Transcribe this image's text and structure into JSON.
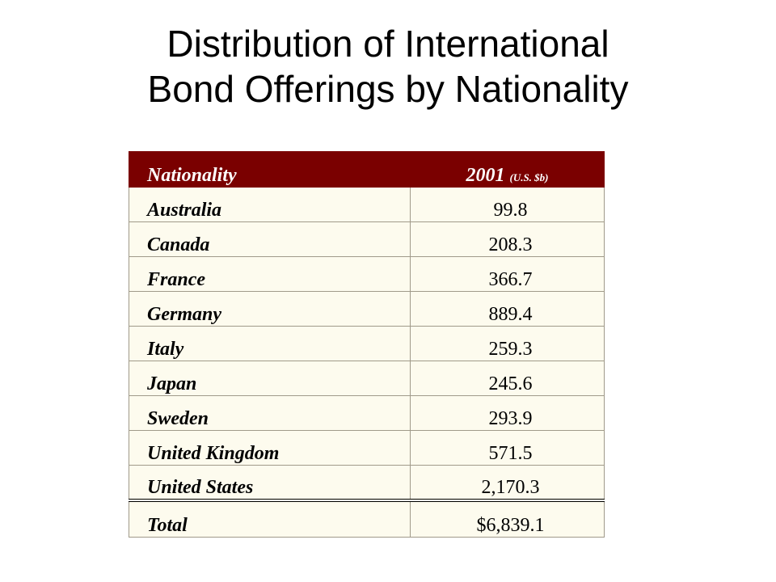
{
  "title": {
    "line1": "Distribution of International",
    "line2": "Bond Offerings by Nationality"
  },
  "table": {
    "headers": {
      "nationality": "Nationality",
      "year": "2001",
      "unit": "(U.S. $b)"
    },
    "header_bg_color": "#7a0000",
    "rows": [
      {
        "name": "Australia",
        "value": "99.8"
      },
      {
        "name": "Canada",
        "value": "208.3"
      },
      {
        "name": "France",
        "value": "366.7"
      },
      {
        "name": "Germany",
        "value": "889.4"
      },
      {
        "name": "Italy",
        "value": "259.3"
      },
      {
        "name": "Japan",
        "value": "245.6"
      },
      {
        "name": "Sweden",
        "value": "293.9"
      },
      {
        "name": "United Kingdom",
        "value": "571.5"
      },
      {
        "name": "United States",
        "value": "2,170.3"
      }
    ],
    "total": {
      "name": "Total",
      "value": "$6,839.1"
    }
  }
}
